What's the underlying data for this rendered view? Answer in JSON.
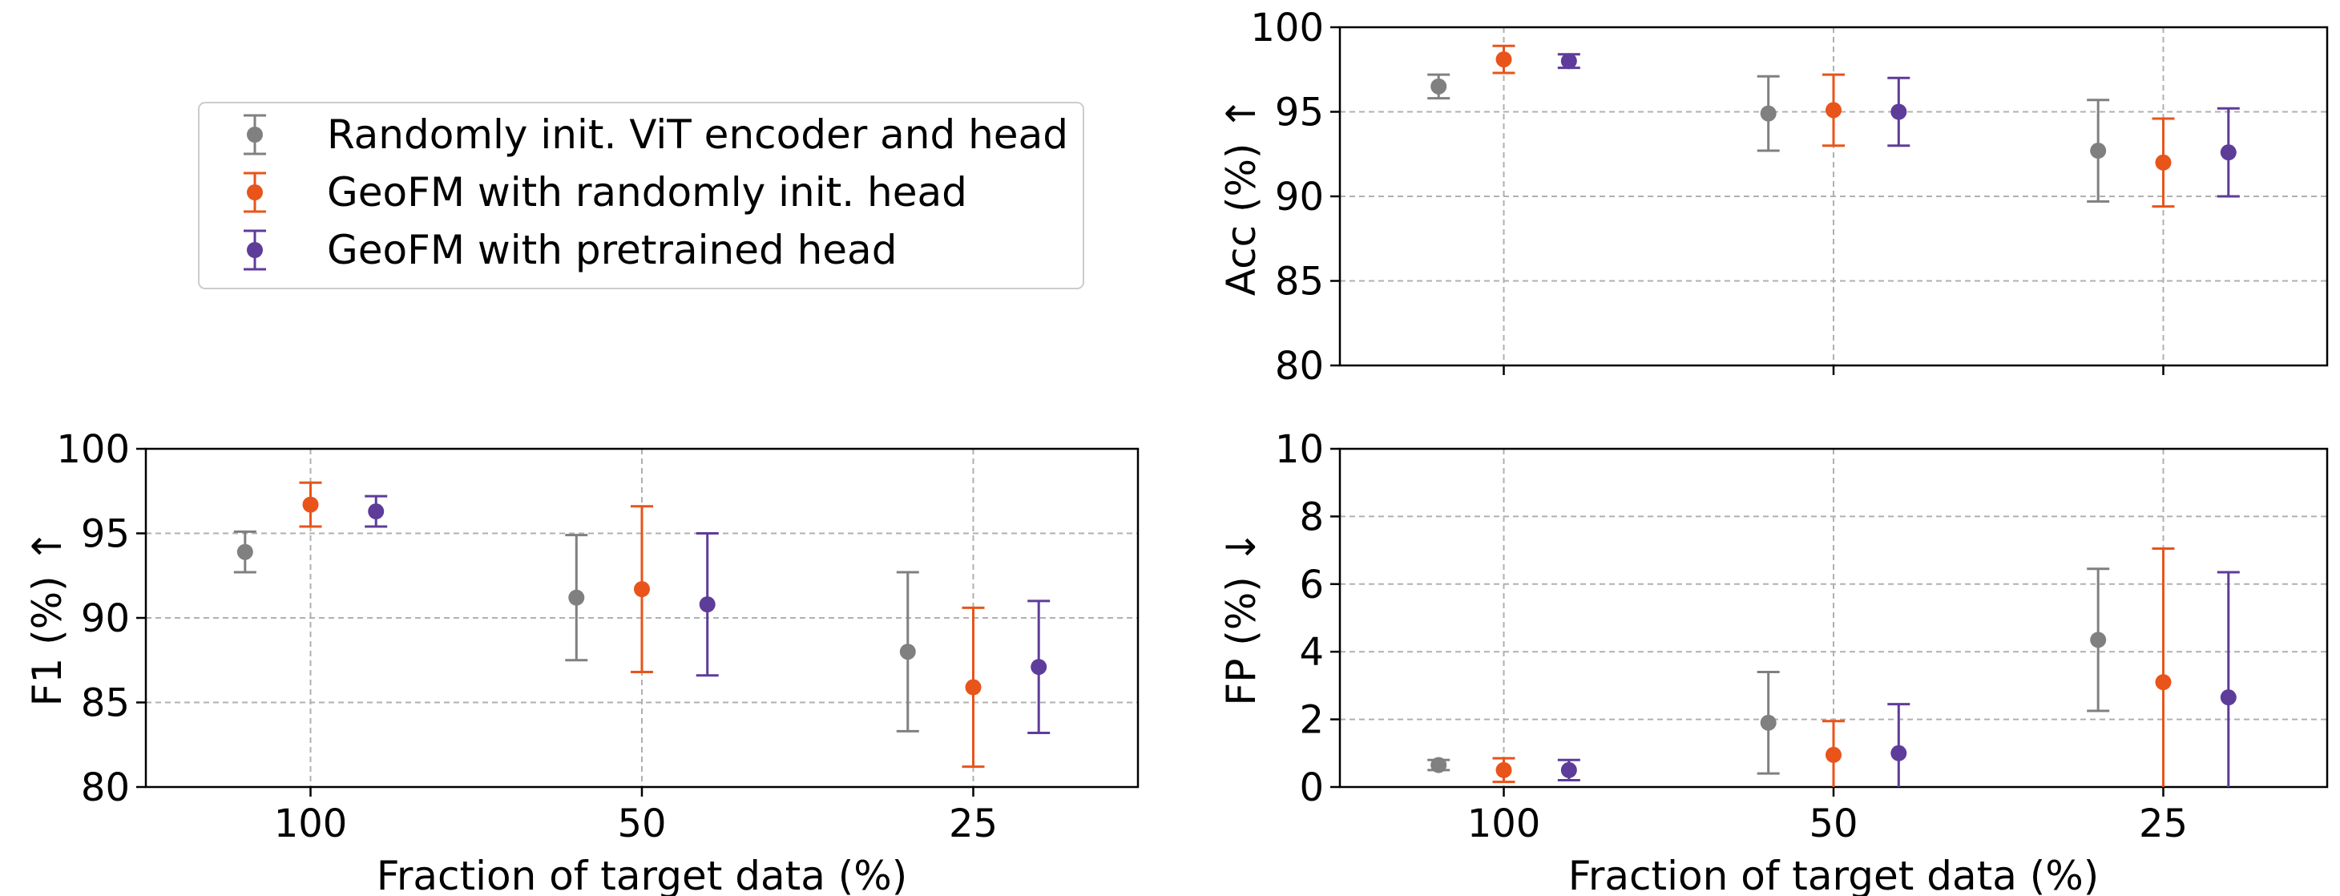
{
  "colors": {
    "Randomly init. ViT encoder and head": "#808080",
    "GeoFM with randomly init. head": "#e8541a",
    "GeoFM with pretrained head": "#5e3c99",
    "grid": "#b0b0b0"
  },
  "legend": {
    "placement": "upper-left (empty quadrant)",
    "items": [
      "Randomly init. ViT encoder and head",
      "GeoFM with randomly init. head",
      "GeoFM with pretrained head"
    ]
  },
  "chart_data": [
    {
      "type": "scatter",
      "subtype": "errorbar",
      "panel": "top-right",
      "ylabel": "Acc (%) ↑",
      "xlabel": "",
      "categories": [
        "100",
        "50",
        "25"
      ],
      "ylim": [
        80,
        100
      ],
      "yticks": [
        80,
        85,
        90,
        95,
        100
      ],
      "grid": true,
      "show_x_tick_labels": false,
      "series": [
        {
          "name": "Randomly init. ViT encoder and head",
          "values": [
            96.5,
            94.9,
            92.7
          ],
          "err_low": [
            0.7,
            2.2,
            3.0
          ],
          "err_high": [
            0.7,
            2.2,
            3.0
          ]
        },
        {
          "name": "GeoFM with randomly init. head",
          "values": [
            98.1,
            95.1,
            92.0
          ],
          "err_low": [
            0.8,
            2.1,
            2.6
          ],
          "err_high": [
            0.8,
            2.1,
            2.6
          ]
        },
        {
          "name": "GeoFM with pretrained head",
          "values": [
            98.0,
            95.0,
            92.6
          ],
          "err_low": [
            0.4,
            2.0,
            2.6
          ],
          "err_high": [
            0.4,
            2.0,
            2.6
          ]
        }
      ]
    },
    {
      "type": "scatter",
      "subtype": "errorbar",
      "panel": "bottom-left",
      "ylabel": "F1 (%) ↑",
      "xlabel": "Fraction of target data (%)",
      "categories": [
        "100",
        "50",
        "25"
      ],
      "ylim": [
        80,
        100
      ],
      "yticks": [
        80,
        85,
        90,
        95,
        100
      ],
      "grid": true,
      "show_x_tick_labels": true,
      "series": [
        {
          "name": "Randomly init. ViT encoder and head",
          "values": [
            93.9,
            91.2,
            88.0
          ],
          "err_low": [
            1.2,
            3.7,
            4.7
          ],
          "err_high": [
            1.2,
            3.7,
            4.7
          ]
        },
        {
          "name": "GeoFM with randomly init. head",
          "values": [
            96.7,
            91.7,
            85.9
          ],
          "err_low": [
            1.3,
            4.9,
            4.7
          ],
          "err_high": [
            1.3,
            4.9,
            4.7
          ]
        },
        {
          "name": "GeoFM with pretrained head",
          "values": [
            96.3,
            90.8,
            87.1
          ],
          "err_low": [
            0.9,
            4.2,
            3.9
          ],
          "err_high": [
            0.9,
            4.2,
            3.9
          ]
        }
      ]
    },
    {
      "type": "scatter",
      "subtype": "errorbar",
      "panel": "bottom-right",
      "ylabel": "FP (%) ↓",
      "xlabel": "Fraction of target data (%)",
      "categories": [
        "100",
        "50",
        "25"
      ],
      "ylim": [
        0,
        10
      ],
      "yticks": [
        0,
        2,
        4,
        6,
        8,
        10
      ],
      "grid": true,
      "show_x_tick_labels": true,
      "series": [
        {
          "name": "Randomly init. ViT encoder and head",
          "values": [
            0.65,
            1.9,
            4.35
          ],
          "err_low": [
            0.15,
            1.5,
            2.1
          ],
          "err_high": [
            0.15,
            1.5,
            2.1
          ]
        },
        {
          "name": "GeoFM with randomly init. head",
          "values": [
            0.5,
            0.95,
            3.1
          ],
          "err_low": [
            0.35,
            1.0,
            3.95
          ],
          "err_high": [
            0.35,
            1.0,
            3.95
          ]
        },
        {
          "name": "GeoFM with pretrained head",
          "values": [
            0.5,
            1.0,
            2.65
          ],
          "err_low": [
            0.3,
            1.45,
            3.7
          ],
          "err_high": [
            0.3,
            1.45,
            3.7
          ]
        }
      ]
    }
  ]
}
